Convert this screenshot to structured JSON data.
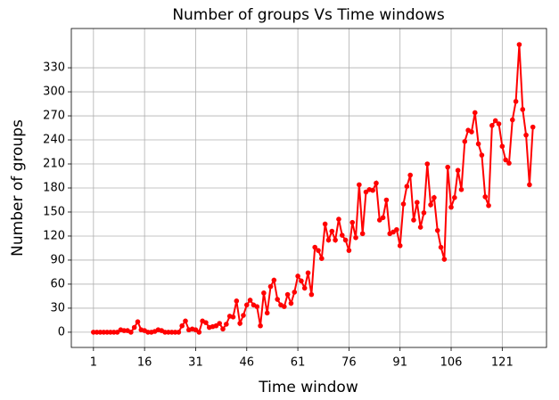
{
  "chart_data": {
    "type": "line",
    "title": "Number of groups Vs Time windows",
    "x_label": "Time window",
    "y_label": "Number  of  groups",
    "x": [
      1,
      2,
      3,
      4,
      5,
      6,
      7,
      8,
      9,
      10,
      11,
      12,
      13,
      14,
      15,
      16,
      17,
      18,
      19,
      20,
      21,
      22,
      23,
      24,
      25,
      26,
      27,
      28,
      29,
      30,
      31,
      32,
      33,
      34,
      35,
      36,
      37,
      38,
      39,
      40,
      41,
      42,
      43,
      44,
      45,
      46,
      47,
      48,
      49,
      50,
      51,
      52,
      53,
      54,
      55,
      56,
      57,
      58,
      59,
      60,
      61,
      62,
      63,
      64,
      65,
      66,
      67,
      68,
      69,
      70,
      71,
      72,
      73,
      74,
      75,
      76,
      77,
      78,
      79,
      80,
      81,
      82,
      83,
      84,
      85,
      86,
      87,
      88,
      89,
      90,
      91,
      92,
      93,
      94,
      95,
      96,
      97,
      98,
      99,
      100,
      101,
      102,
      103,
      104,
      105,
      106,
      107,
      108,
      109,
      110,
      111,
      112,
      113,
      114,
      115,
      116,
      117,
      118,
      119,
      120,
      121,
      122,
      123,
      124,
      125,
      126,
      127,
      128,
      129,
      130
    ],
    "series": [
      {
        "name": "Number of groups",
        "color": "#ff0000",
        "values": [
          0,
          0,
          0,
          0,
          0,
          0,
          0,
          0,
          3,
          2,
          2,
          0,
          6,
          13,
          3,
          2,
          0,
          0,
          1,
          3,
          2,
          0,
          0,
          0,
          0,
          0,
          8,
          14,
          3,
          4,
          3,
          0,
          14,
          12,
          6,
          7,
          8,
          11,
          4,
          10,
          20,
          19,
          39,
          11,
          21,
          34,
          40,
          34,
          32,
          8,
          49,
          24,
          57,
          65,
          41,
          34,
          32,
          47,
          36,
          50,
          70,
          64,
          55,
          74,
          47,
          106,
          102,
          92,
          135,
          115,
          126,
          115,
          141,
          121,
          115,
          102,
          137,
          118,
          184,
          123,
          175,
          178,
          177,
          186,
          140,
          143,
          165,
          123,
          125,
          128,
          108,
          160,
          182,
          196,
          140,
          162,
          131,
          149,
          210,
          159,
          168,
          127,
          106,
          91,
          206,
          156,
          168,
          202,
          178,
          238,
          252,
          250,
          274,
          235,
          221,
          169,
          158,
          258,
          264,
          260,
          232,
          215,
          211,
          265,
          288,
          359,
          278,
          246,
          184,
          256
        ]
      }
    ],
    "xlim": [
      -5.5,
      134
    ],
    "ylim": [
      -19,
      379
    ],
    "xticks": [
      1,
      16,
      31,
      46,
      61,
      76,
      91,
      106,
      121
    ],
    "yticks": [
      0,
      30,
      60,
      90,
      120,
      150,
      180,
      210,
      240,
      270,
      300,
      330
    ],
    "grid": true
  }
}
